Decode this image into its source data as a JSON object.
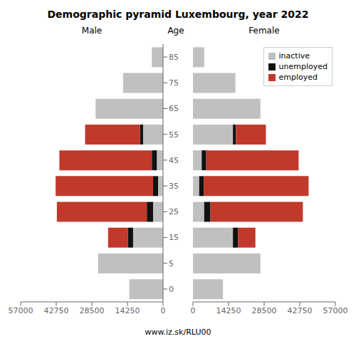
{
  "title": "Demographic pyramid Luxembourg, year 2022",
  "annotations": [
    "www.iz.sk/RLU00"
  ],
  "chart_data": [
    {
      "type": "bar",
      "orientation": "horizontal",
      "stacked": true,
      "grid": false,
      "title": "Male",
      "ylabel": "Age",
      "categories": [
        "0",
        "5",
        "15",
        "25",
        "35",
        "45",
        "55",
        "65",
        "75",
        "85"
      ],
      "xlim": [
        57000,
        0
      ],
      "xticks": [
        0,
        14250,
        28500,
        42750,
        57000
      ],
      "series": [
        {
          "name": "inactive",
          "color": "#c0c0c0",
          "values": [
            13500,
            26000,
            12000,
            4000,
            2000,
            2500,
            8000,
            27000,
            16000,
            4500
          ]
        },
        {
          "name": "unemployed",
          "color": "#111111",
          "values": [
            0,
            0,
            2000,
            2500,
            2000,
            2000,
            1200,
            0,
            0,
            0
          ]
        },
        {
          "name": "employed",
          "color": "#c0392b",
          "values": [
            0,
            0,
            8000,
            36000,
            39000,
            37000,
            22000,
            0,
            0,
            0
          ]
        }
      ]
    },
    {
      "type": "bar",
      "orientation": "horizontal",
      "stacked": true,
      "grid": false,
      "title": "Female",
      "tick_labels": "x",
      "legend": "upper right",
      "categories": [
        "0",
        "5",
        "15",
        "25",
        "35",
        "45",
        "55",
        "65",
        "75",
        "85"
      ],
      "xlim": [
        0,
        57000
      ],
      "xticks": [
        0,
        14250,
        28500,
        42750,
        57000
      ],
      "series": [
        {
          "name": "inactive",
          "color": "#c0c0c0",
          "values": [
            12000,
            27000,
            16000,
            4500,
            2500,
            3500,
            16000,
            27000,
            17000,
            4500
          ]
        },
        {
          "name": "unemployed",
          "color": "#111111",
          "values": [
            0,
            0,
            2000,
            2500,
            1800,
            1800,
            1200,
            0,
            0,
            0
          ]
        },
        {
          "name": "employed",
          "color": "#c0392b",
          "values": [
            0,
            0,
            7000,
            37000,
            42000,
            37000,
            12000,
            0,
            0,
            0
          ]
        }
      ]
    }
  ]
}
